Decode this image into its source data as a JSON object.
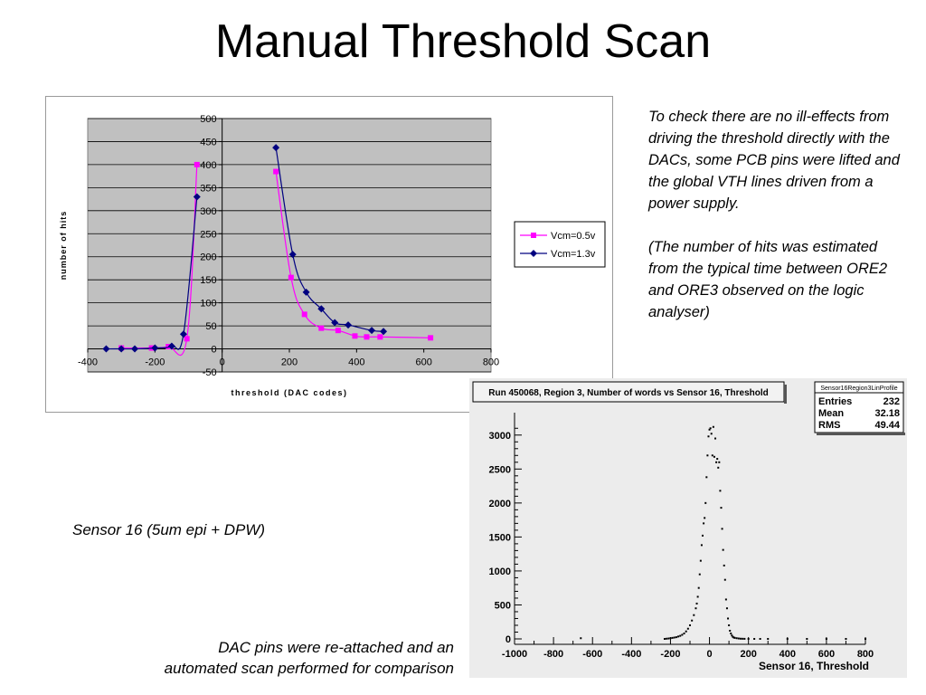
{
  "slide": {
    "title": "Manual Threshold Scan",
    "note_1": "To check there are no ill-effects from driving the threshold directly with the DACs, some PCB pins were lifted and the global VTH lines driven from a power supply.",
    "note_2": "(The number of hits was estimated from the typical time between ORE2 and ORE3 observed on the logic analyser)",
    "sensor_caption": "Sensor 16 (5um epi + DPW)",
    "bottom_caption_1": "DAC pins were re-attached and an",
    "bottom_caption_2": "automated scan performed for comparison"
  },
  "chart_data": [
    {
      "type": "line",
      "title": "",
      "xlabel": "threshold (DAC codes)",
      "ylabel": "number of hits",
      "xlim": [
        -400,
        800
      ],
      "ylim": [
        -50,
        500
      ],
      "xticks": [
        -400,
        -200,
        0,
        200,
        400,
        600,
        800
      ],
      "yticks": [
        -50,
        0,
        50,
        100,
        150,
        200,
        250,
        300,
        350,
        400,
        450,
        500
      ],
      "grid": true,
      "legend": "right",
      "colors": {
        "plot_bg": "#c0c0c0",
        "Vcm=0.5v": "#ff00ff",
        "Vcm=1.3v": "#000080"
      },
      "series": [
        {
          "name": "Vcm=0.5v",
          "marker": "square",
          "x": [
            -300,
            -210,
            -160,
            -105,
            -75,
            160,
            205,
            245,
            295,
            345,
            395,
            430,
            470,
            620
          ],
          "y": [
            2,
            2,
            5,
            22,
            400,
            385,
            155,
            75,
            45,
            40,
            28,
            26,
            26,
            24
          ]
        },
        {
          "name": "Vcm=1.3v",
          "marker": "diamond",
          "x": [
            -345,
            -300,
            -260,
            -200,
            -150,
            -115,
            -75,
            160,
            210,
            250,
            295,
            335,
            375,
            445,
            480
          ],
          "y": [
            0,
            0,
            0,
            2,
            6,
            32,
            330,
            437,
            205,
            123,
            87,
            57,
            52,
            40,
            38
          ]
        }
      ]
    },
    {
      "type": "scatter",
      "title": "Run 450068, Region 3, Number of words vs Sensor 16, Threshold",
      "xlabel": "Sensor 16, Threshold",
      "ylabel": "",
      "xlim": [
        -1000,
        800
      ],
      "ylim": [
        -80,
        3250
      ],
      "xticks": [
        -1000,
        -800,
        -600,
        -400,
        -200,
        0,
        200,
        400,
        600,
        800
      ],
      "yticks": [
        0,
        500,
        1000,
        1500,
        2000,
        2500,
        3000
      ],
      "stats": {
        "name": "Sensor16Region3LinProfile",
        "rows": [
          {
            "label": "Entries",
            "value": "232"
          },
          {
            "label": "Mean",
            "value": "32.18"
          },
          {
            "label": "RMS",
            "value": "49.44"
          }
        ]
      },
      "series": [
        {
          "name": "",
          "x": [
            -660,
            -230,
            -220,
            -210,
            -200,
            -190,
            -180,
            -170,
            -160,
            -150,
            -140,
            -130,
            -120,
            -110,
            -100,
            -90,
            -80,
            -70,
            -65,
            -60,
            -55,
            -50,
            -45,
            -40,
            -35,
            -30,
            -25,
            -20,
            -15,
            -10,
            -5,
            0,
            5,
            10,
            15,
            20,
            25,
            30,
            35,
            40,
            45,
            50,
            55,
            60,
            65,
            70,
            75,
            80,
            85,
            90,
            95,
            100,
            105,
            110,
            115,
            120,
            125,
            130,
            140,
            150,
            160,
            170,
            180,
            200,
            230,
            260,
            300,
            400,
            500,
            600,
            700,
            800
          ],
          "y": [
            10,
            0,
            3,
            6,
            10,
            15,
            20,
            25,
            35,
            45,
            60,
            80,
            110,
            150,
            200,
            270,
            350,
            450,
            520,
            620,
            750,
            950,
            1150,
            1380,
            1520,
            1700,
            1780,
            2000,
            2380,
            2700,
            2980,
            3080,
            3100,
            3020,
            2700,
            3120,
            2680,
            2950,
            2600,
            2650,
            2520,
            2600,
            2180,
            1930,
            1620,
            1310,
            1080,
            870,
            580,
            450,
            300,
            200,
            120,
            80,
            50,
            30,
            20,
            15,
            10,
            6,
            3,
            2,
            1,
            0,
            0,
            0,
            0,
            0,
            0,
            0,
            0,
            0
          ]
        }
      ]
    }
  ]
}
